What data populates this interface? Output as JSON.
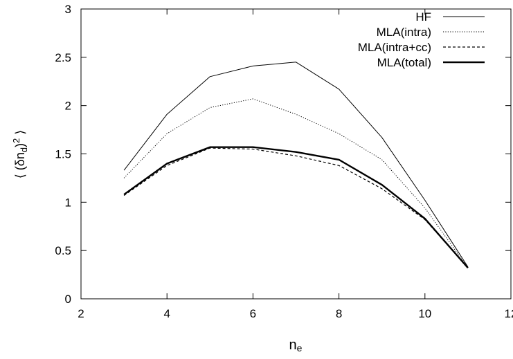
{
  "chart_data": {
    "type": "line",
    "title": "",
    "xlabel": "n",
    "xlabel_sub": "e",
    "ylabel_parts": [
      "⟨ (δn",
      "d",
      ")",
      "2",
      " ⟩"
    ],
    "xlim": [
      2,
      12
    ],
    "ylim": [
      0,
      3
    ],
    "xticks": [
      2,
      4,
      6,
      8,
      10,
      12
    ],
    "yticks": [
      0,
      0.5,
      1,
      1.5,
      2,
      2.5,
      3
    ],
    "ytick_labels": [
      "0",
      "0.5",
      "1",
      "1.5",
      "2",
      "2.5",
      "3"
    ],
    "grid": false,
    "legend_position": "top-right",
    "x": [
      3,
      4,
      5,
      6,
      7,
      8,
      9,
      10,
      11
    ],
    "series": [
      {
        "name": "HF",
        "style": "thin-solid",
        "color": "#000000",
        "values": [
          1.33,
          1.91,
          2.3,
          2.41,
          2.45,
          2.17,
          1.67,
          1.02,
          0.33
        ]
      },
      {
        "name": "MLA(intra)",
        "style": "dotted",
        "color": "#000000",
        "values": [
          1.25,
          1.71,
          1.98,
          2.07,
          1.91,
          1.71,
          1.44,
          0.94,
          0.32
        ]
      },
      {
        "name": "MLA(intra+cc)",
        "style": "dashed",
        "color": "#000000",
        "values": [
          1.07,
          1.38,
          1.56,
          1.55,
          1.48,
          1.38,
          1.14,
          0.82,
          0.32
        ]
      },
      {
        "name": "MLA(total)",
        "style": "thick-solid",
        "color": "#000000",
        "values": [
          1.08,
          1.4,
          1.57,
          1.57,
          1.52,
          1.44,
          1.18,
          0.83,
          0.32
        ]
      }
    ]
  }
}
